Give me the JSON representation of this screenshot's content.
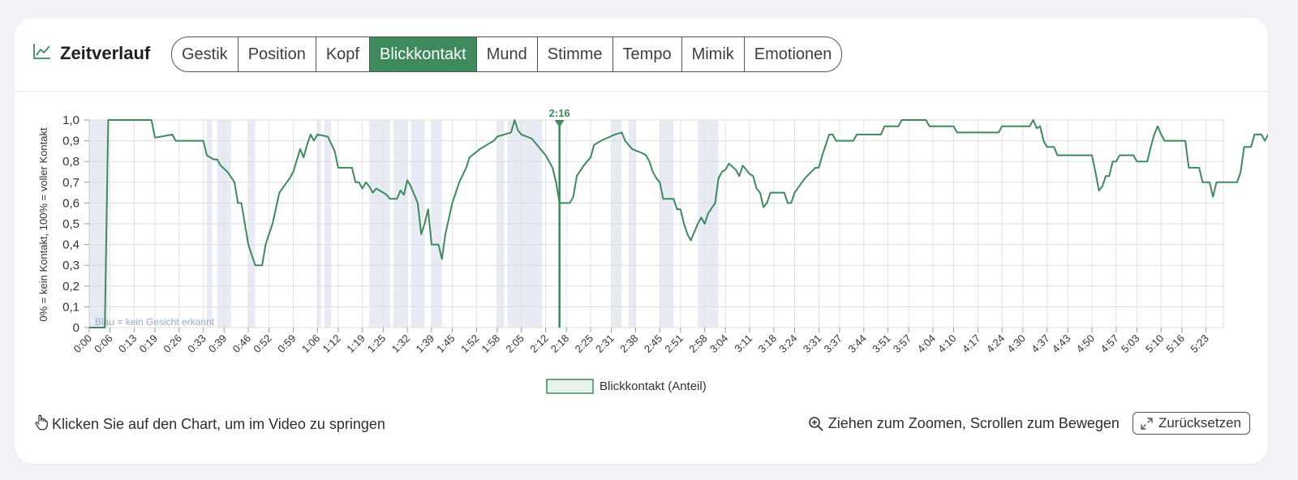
{
  "header": {
    "title": "Zeitverlauf",
    "icon": "line-chart-icon",
    "tabs": [
      {
        "label": "Gestik",
        "active": false
      },
      {
        "label": "Position",
        "active": false
      },
      {
        "label": "Kopf",
        "active": false
      },
      {
        "label": "Blickkontakt",
        "active": true
      },
      {
        "label": "Mund",
        "active": false
      },
      {
        "label": "Stimme",
        "active": false
      },
      {
        "label": "Tempo",
        "active": false
      },
      {
        "label": "Mimik",
        "active": false
      },
      {
        "label": "Emotionen",
        "active": false
      }
    ]
  },
  "footer": {
    "hint_click": "Klicken Sie auf den Chart, um im Video zu springen",
    "hint_zoom": "Ziehen zum Zoomen, Scrollen zum Bewegen",
    "reset_label": "Zurücksetzen"
  },
  "colors": {
    "accent": "#3e8a5c",
    "no_face_band": "#e8ebf4",
    "no_face_text": "#9aa9c9"
  },
  "chart_data": {
    "type": "line",
    "ylabel": "0% = kein Kontakt, 100% = voller Kontakt",
    "ylim": [
      0,
      1
    ],
    "yticks": [
      "0",
      "0,1",
      "0,2",
      "0,3",
      "0,4",
      "0,5",
      "0,6",
      "0,7",
      "0,8",
      "0,9",
      "1,0"
    ],
    "x_max_seconds": 328,
    "xtick_labels": [
      "0:00",
      "0:06",
      "0:13",
      "0:19",
      "0:26",
      "0:33",
      "0:39",
      "0:46",
      "0:52",
      "0:59",
      "1:06",
      "1:12",
      "1:19",
      "1:25",
      "1:32",
      "1:39",
      "1:45",
      "1:52",
      "1:58",
      "2:05",
      "2:12",
      "2:18",
      "2:25",
      "2:31",
      "2:38",
      "2:45",
      "2:51",
      "2:58",
      "3:04",
      "3:11",
      "3:18",
      "3:24",
      "3:31",
      "3:37",
      "3:44",
      "3:51",
      "3:57",
      "4:04",
      "4:10",
      "4:17",
      "4:24",
      "4:30",
      "4:37",
      "4:43",
      "4:50",
      "4:57",
      "5:03",
      "5:10",
      "5:16",
      "5:23"
    ],
    "legend": "Blickkontakt (Anteil)",
    "legend_position": "bottom-center",
    "no_face_note": "Blau = kein Gesicht erkannt",
    "marker": {
      "label": "2:16",
      "t": 136
    },
    "no_face_intervals": [
      [
        0,
        5.5
      ],
      [
        34,
        35.5
      ],
      [
        37,
        41
      ],
      [
        46,
        48
      ],
      [
        66,
        67
      ],
      [
        68,
        70
      ],
      [
        81,
        87
      ],
      [
        88,
        92
      ],
      [
        93,
        97
      ],
      [
        99,
        102
      ],
      [
        118,
        120
      ],
      [
        121,
        131
      ],
      [
        151,
        154
      ],
      [
        156,
        158
      ],
      [
        165,
        169
      ],
      [
        176,
        182
      ],
      [
        329,
        330
      ]
    ],
    "series": [
      {
        "name": "Blickkontakt (Anteil)",
        "points": [
          [
            0,
            0
          ],
          [
            4.5,
            0
          ],
          [
            5.5,
            1
          ],
          [
            13,
            1
          ],
          [
            18,
            1
          ],
          [
            19,
            0.915
          ],
          [
            24,
            0.93
          ],
          [
            25,
            0.9
          ],
          [
            30,
            0.9
          ],
          [
            33,
            0.9
          ],
          [
            34,
            0.83
          ],
          [
            36,
            0.81
          ],
          [
            37,
            0.81
          ],
          [
            38,
            0.78
          ],
          [
            40,
            0.75
          ],
          [
            42,
            0.7
          ],
          [
            43,
            0.6
          ],
          [
            44,
            0.6
          ],
          [
            45,
            0.5
          ],
          [
            46,
            0.4
          ],
          [
            47,
            0.35
          ],
          [
            48,
            0.3
          ],
          [
            50,
            0.3
          ],
          [
            51,
            0.4
          ],
          [
            53,
            0.5
          ],
          [
            55,
            0.65
          ],
          [
            58,
            0.72
          ],
          [
            59,
            0.75
          ],
          [
            61,
            0.86
          ],
          [
            62,
            0.82
          ],
          [
            63,
            0.88
          ],
          [
            64,
            0.93
          ],
          [
            65,
            0.9
          ],
          [
            66,
            0.93
          ],
          [
            69,
            0.92
          ],
          [
            71,
            0.85
          ],
          [
            72,
            0.77
          ],
          [
            74,
            0.77
          ],
          [
            76,
            0.77
          ],
          [
            77,
            0.7
          ],
          [
            78,
            0.7
          ],
          [
            79,
            0.67
          ],
          [
            80,
            0.7
          ],
          [
            81,
            0.68
          ],
          [
            82,
            0.65
          ],
          [
            83,
            0.67
          ],
          [
            84,
            0.66
          ],
          [
            86,
            0.64
          ],
          [
            87,
            0.62
          ],
          [
            89,
            0.62
          ],
          [
            90,
            0.66
          ],
          [
            91,
            0.64
          ],
          [
            92,
            0.71
          ],
          [
            93,
            0.68
          ],
          [
            95,
            0.6
          ],
          [
            96,
            0.45
          ],
          [
            97,
            0.5
          ],
          [
            98,
            0.57
          ],
          [
            99,
            0.4
          ],
          [
            101,
            0.4
          ],
          [
            102,
            0.33
          ],
          [
            103,
            0.45
          ],
          [
            105,
            0.6
          ],
          [
            107,
            0.7
          ],
          [
            109,
            0.77
          ],
          [
            110,
            0.82
          ],
          [
            113,
            0.86
          ],
          [
            116,
            0.89
          ],
          [
            117,
            0.9
          ],
          [
            118,
            0.92
          ],
          [
            120,
            0.93
          ],
          [
            122,
            0.94
          ],
          [
            123,
            1.0
          ],
          [
            124,
            0.95
          ],
          [
            125,
            0.93
          ],
          [
            128,
            0.91
          ],
          [
            130,
            0.87
          ],
          [
            132,
            0.83
          ],
          [
            134,
            0.77
          ],
          [
            135,
            0.7
          ],
          [
            136,
            0.6
          ],
          [
            139,
            0.6
          ],
          [
            140,
            0.63
          ],
          [
            141,
            0.73
          ],
          [
            143,
            0.78
          ],
          [
            145,
            0.82
          ],
          [
            146,
            0.88
          ],
          [
            148,
            0.9
          ],
          [
            152,
            0.93
          ],
          [
            154,
            0.94
          ],
          [
            155,
            0.9
          ],
          [
            156,
            0.88
          ],
          [
            157,
            0.86
          ],
          [
            160,
            0.84
          ],
          [
            161,
            0.83
          ],
          [
            162,
            0.8
          ],
          [
            163,
            0.75
          ],
          [
            164,
            0.72
          ],
          [
            165,
            0.7
          ],
          [
            166,
            0.62
          ],
          [
            169,
            0.62
          ],
          [
            170,
            0.57
          ],
          [
            171,
            0.57
          ],
          [
            172,
            0.5
          ],
          [
            173,
            0.45
          ],
          [
            174,
            0.42
          ],
          [
            176,
            0.5
          ],
          [
            177,
            0.53
          ],
          [
            178,
            0.5
          ],
          [
            179,
            0.55
          ],
          [
            181,
            0.6
          ],
          [
            182,
            0.72
          ],
          [
            183,
            0.75
          ],
          [
            184,
            0.76
          ],
          [
            185,
            0.79
          ],
          [
            187,
            0.76
          ],
          [
            188,
            0.73
          ],
          [
            189,
            0.78
          ],
          [
            191,
            0.74
          ],
          [
            192,
            0.73
          ],
          [
            193,
            0.67
          ],
          [
            194,
            0.65
          ],
          [
            195,
            0.58
          ],
          [
            196,
            0.6
          ],
          [
            197,
            0.65
          ],
          [
            201,
            0.65
          ],
          [
            202,
            0.6
          ],
          [
            203,
            0.6
          ],
          [
            204,
            0.65
          ],
          [
            207,
            0.72
          ],
          [
            210,
            0.77
          ],
          [
            211,
            0.77
          ],
          [
            212,
            0.83
          ],
          [
            214,
            0.93
          ],
          [
            215,
            0.93
          ],
          [
            216,
            0.9
          ],
          [
            221,
            0.9
          ],
          [
            222,
            0.93
          ],
          [
            229,
            0.93
          ],
          [
            230,
            0.97
          ],
          [
            234,
            0.97
          ],
          [
            235,
            1.0
          ],
          [
            242,
            1.0
          ],
          [
            243,
            0.97
          ],
          [
            250,
            0.97
          ],
          [
            251,
            0.94
          ],
          [
            263,
            0.94
          ],
          [
            264,
            0.97
          ],
          [
            272,
            0.97
          ],
          [
            273,
            1.0
          ],
          [
            274,
            0.96
          ],
          [
            275,
            0.97
          ],
          [
            276,
            0.9
          ],
          [
            277,
            0.87
          ],
          [
            279,
            0.87
          ],
          [
            280,
            0.83
          ],
          [
            283,
            0.83
          ],
          [
            290,
            0.83
          ],
          [
            291,
            0.75
          ],
          [
            292,
            0.66
          ],
          [
            293,
            0.68
          ],
          [
            294,
            0.73
          ],
          [
            295,
            0.73
          ],
          [
            296,
            0.8
          ],
          [
            297,
            0.8
          ],
          [
            298,
            0.83
          ],
          [
            302,
            0.83
          ],
          [
            303,
            0.8
          ],
          [
            306,
            0.8
          ],
          [
            307,
            0.87
          ],
          [
            308,
            0.93
          ],
          [
            309,
            0.97
          ],
          [
            310,
            0.93
          ],
          [
            311,
            0.9
          ],
          [
            317,
            0.9
          ],
          [
            318,
            0.77
          ],
          [
            321,
            0.77
          ],
          [
            322,
            0.7
          ],
          [
            324,
            0.7
          ],
          [
            325,
            0.63
          ],
          [
            326,
            0.7
          ],
          [
            332,
            0.7
          ],
          [
            333,
            0.75
          ],
          [
            334,
            0.87
          ],
          [
            336,
            0.87
          ],
          [
            337,
            0.93
          ],
          [
            339,
            0.93
          ],
          [
            340,
            0.9
          ],
          [
            341,
            0.93
          ],
          [
            343,
            0.92
          ],
          [
            344,
            0.92
          ]
        ]
      }
    ]
  }
}
